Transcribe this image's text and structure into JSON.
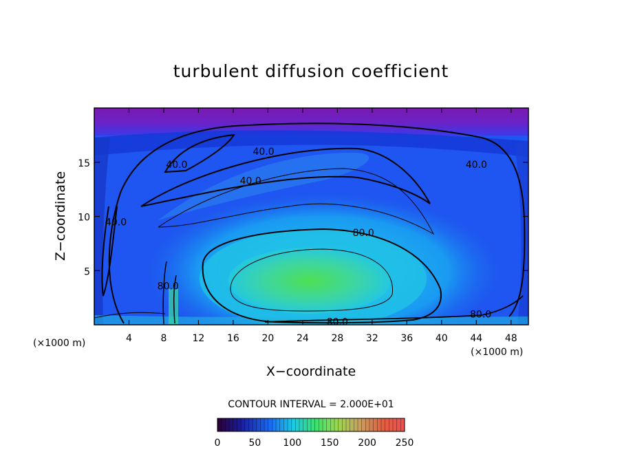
{
  "chart_data": {
    "type": "heatmap",
    "title": "turbulent diffusion coefficient",
    "xlabel": "X−coordinate",
    "ylabel": "Z−coordinate",
    "x_unit_label": "(×1000 m)",
    "xlim": [
      0,
      50
    ],
    "ylim": [
      0,
      20
    ],
    "x_ticks": [
      4,
      8,
      12,
      16,
      20,
      24,
      28,
      32,
      36,
      40,
      44,
      48
    ],
    "y_ticks": [
      5,
      10,
      15
    ],
    "contour_interval_label": "CONTOUR INTERVAL = 2.000E+01",
    "contour_interval": 20,
    "colorbar": {
      "min": 0,
      "max": 250,
      "ticks": [
        0,
        50,
        100,
        150,
        200,
        250
      ]
    },
    "contour_labels": [
      {
        "text": "40.0",
        "x": 19.5,
        "z": 16.0
      },
      {
        "text": "40.0",
        "x": 9.5,
        "z": 14.8
      },
      {
        "text": "40.0",
        "x": 18.0,
        "z": 13.3
      },
      {
        "text": "40.0",
        "x": 44.0,
        "z": 14.8
      },
      {
        "text": "40.0",
        "x": 2.5,
        "z": 9.5
      },
      {
        "text": "80.0",
        "x": 31.0,
        "z": 8.5
      },
      {
        "text": "80.0",
        "x": 8.5,
        "z": 3.6
      },
      {
        "text": "80.0",
        "x": 28.0,
        "z": 0.3
      },
      {
        "text": "80.0",
        "x": 44.5,
        "z": 1.0
      }
    ],
    "legend": "none",
    "grid": false
  }
}
